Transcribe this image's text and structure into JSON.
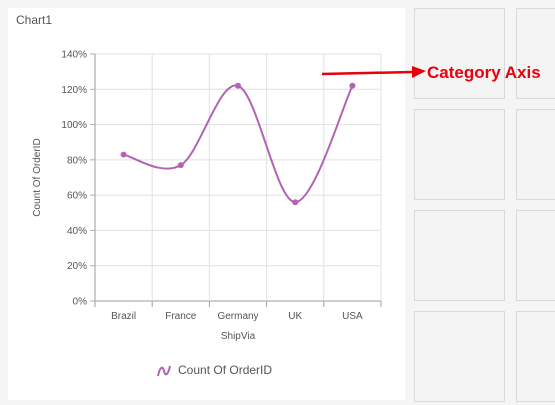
{
  "panel": {
    "title": "Chart1"
  },
  "annotation": {
    "label": "Category Axis",
    "color": "#e8000b"
  },
  "chart_data": {
    "type": "line",
    "smooth": true,
    "categories": [
      "Brazil",
      "France",
      "Germany",
      "UK",
      "USA"
    ],
    "series": [
      {
        "name": "Count Of OrderID",
        "values": [
          83,
          77,
          122,
          56,
          122
        ],
        "color": "#b264b4"
      }
    ],
    "xlabel": "ShipVia",
    "ylabel": "Count Of OrderID",
    "ylim": [
      0,
      140
    ],
    "yticks": [
      "0%",
      "20%",
      "40%",
      "60%",
      "80%",
      "100%",
      "120%",
      "140%"
    ],
    "grid": true,
    "legend": "bottom"
  }
}
